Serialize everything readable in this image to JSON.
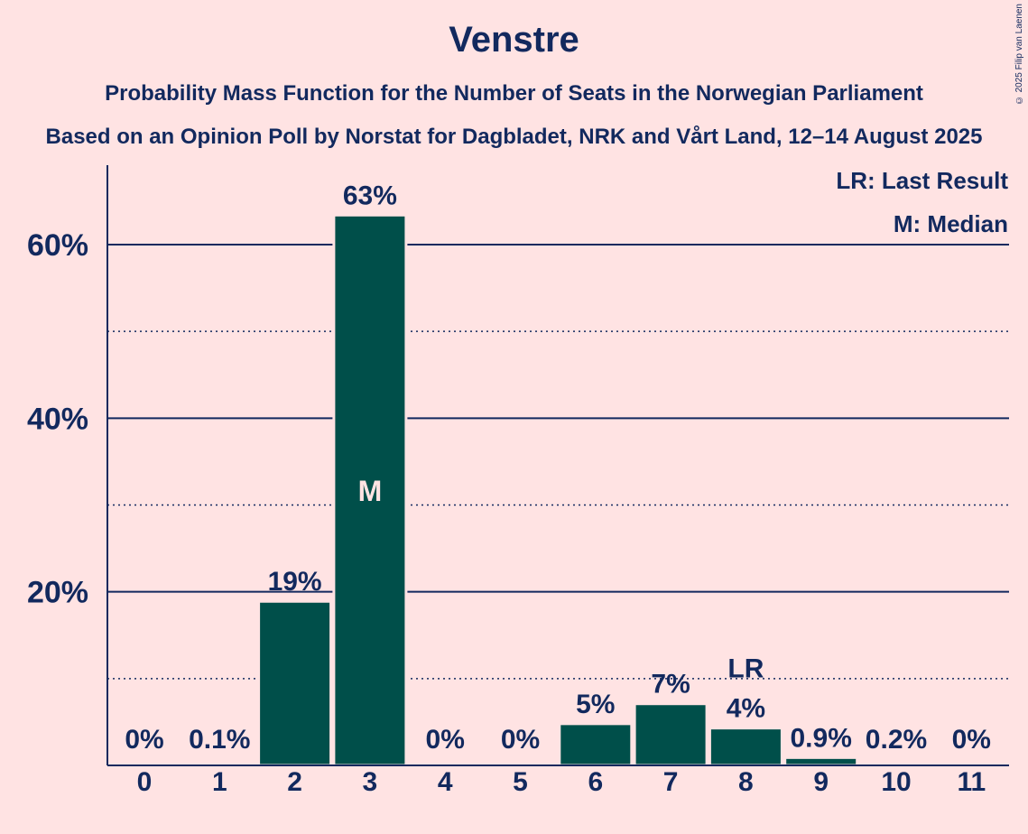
{
  "copyright": "© 2025 Filip van Laenen",
  "chart_data": {
    "type": "bar",
    "title": "Venstre",
    "subtitle": "Probability Mass Function for the Number of Seats in the Norwegian Parliament",
    "subtitle2": "Based on an Opinion Poll by Norstat for Dagbladet, NRK and Vårt Land, 12–14 August 2025",
    "categories": [
      "0",
      "1",
      "2",
      "3",
      "4",
      "5",
      "6",
      "7",
      "8",
      "9",
      "10",
      "11"
    ],
    "values": [
      0,
      0.1,
      18.9,
      63.4,
      0,
      0,
      4.8,
      7.1,
      4.3,
      0.9,
      0.2,
      0
    ],
    "value_labels": [
      "0%",
      "0.1%",
      "19%",
      "63%",
      "0%",
      "0%",
      "5%",
      "7%",
      "4%",
      "0.9%",
      "0.2%",
      "0%"
    ],
    "ylim": [
      0,
      69
    ],
    "yticks": [
      20,
      40,
      60
    ],
    "ytick_labels": [
      "20%",
      "40%",
      "60%"
    ],
    "minor_gridlines": [
      10,
      30,
      50
    ],
    "median_seat": "3",
    "median_marker": "M",
    "last_result_seat": "8",
    "last_result_marker": "LR",
    "legend": [
      "LR: Last Result",
      "M: Median"
    ],
    "legend_position": "top-right",
    "bar_color": "#004F4A",
    "text_color": "#12295E",
    "background": "#FFE3E3"
  }
}
